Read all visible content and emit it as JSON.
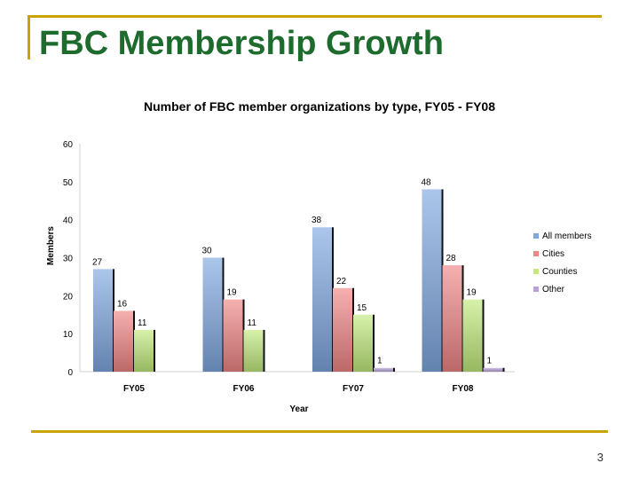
{
  "slide": {
    "title": "FBC Membership Growth",
    "page_number": "3"
  },
  "colors": {
    "accent_rule": "#c9a400",
    "title": "#1e6b2e"
  },
  "chart_data": {
    "type": "bar",
    "title": "Number of FBC member organizations by type, FY05 - FY08",
    "xlabel": "Year",
    "ylabel": "Members",
    "ylim": [
      0,
      60
    ],
    "yticks": [
      0,
      10,
      20,
      30,
      40,
      50,
      60
    ],
    "grid": false,
    "legend": "right",
    "categories": [
      "FY05",
      "FY06",
      "FY07",
      "FY08"
    ],
    "series": [
      {
        "name": "All members",
        "color": "#7fa8e0",
        "values": [
          27,
          30,
          38,
          48
        ]
      },
      {
        "name": "Cities",
        "color": "#f08585",
        "values": [
          16,
          19,
          22,
          28
        ]
      },
      {
        "name": "Counties",
        "color": "#c2ea7c",
        "values": [
          11,
          11,
          15,
          19
        ]
      },
      {
        "name": "Other",
        "color": "#b7a1d8",
        "values": [
          null,
          null,
          1,
          1
        ]
      }
    ]
  }
}
